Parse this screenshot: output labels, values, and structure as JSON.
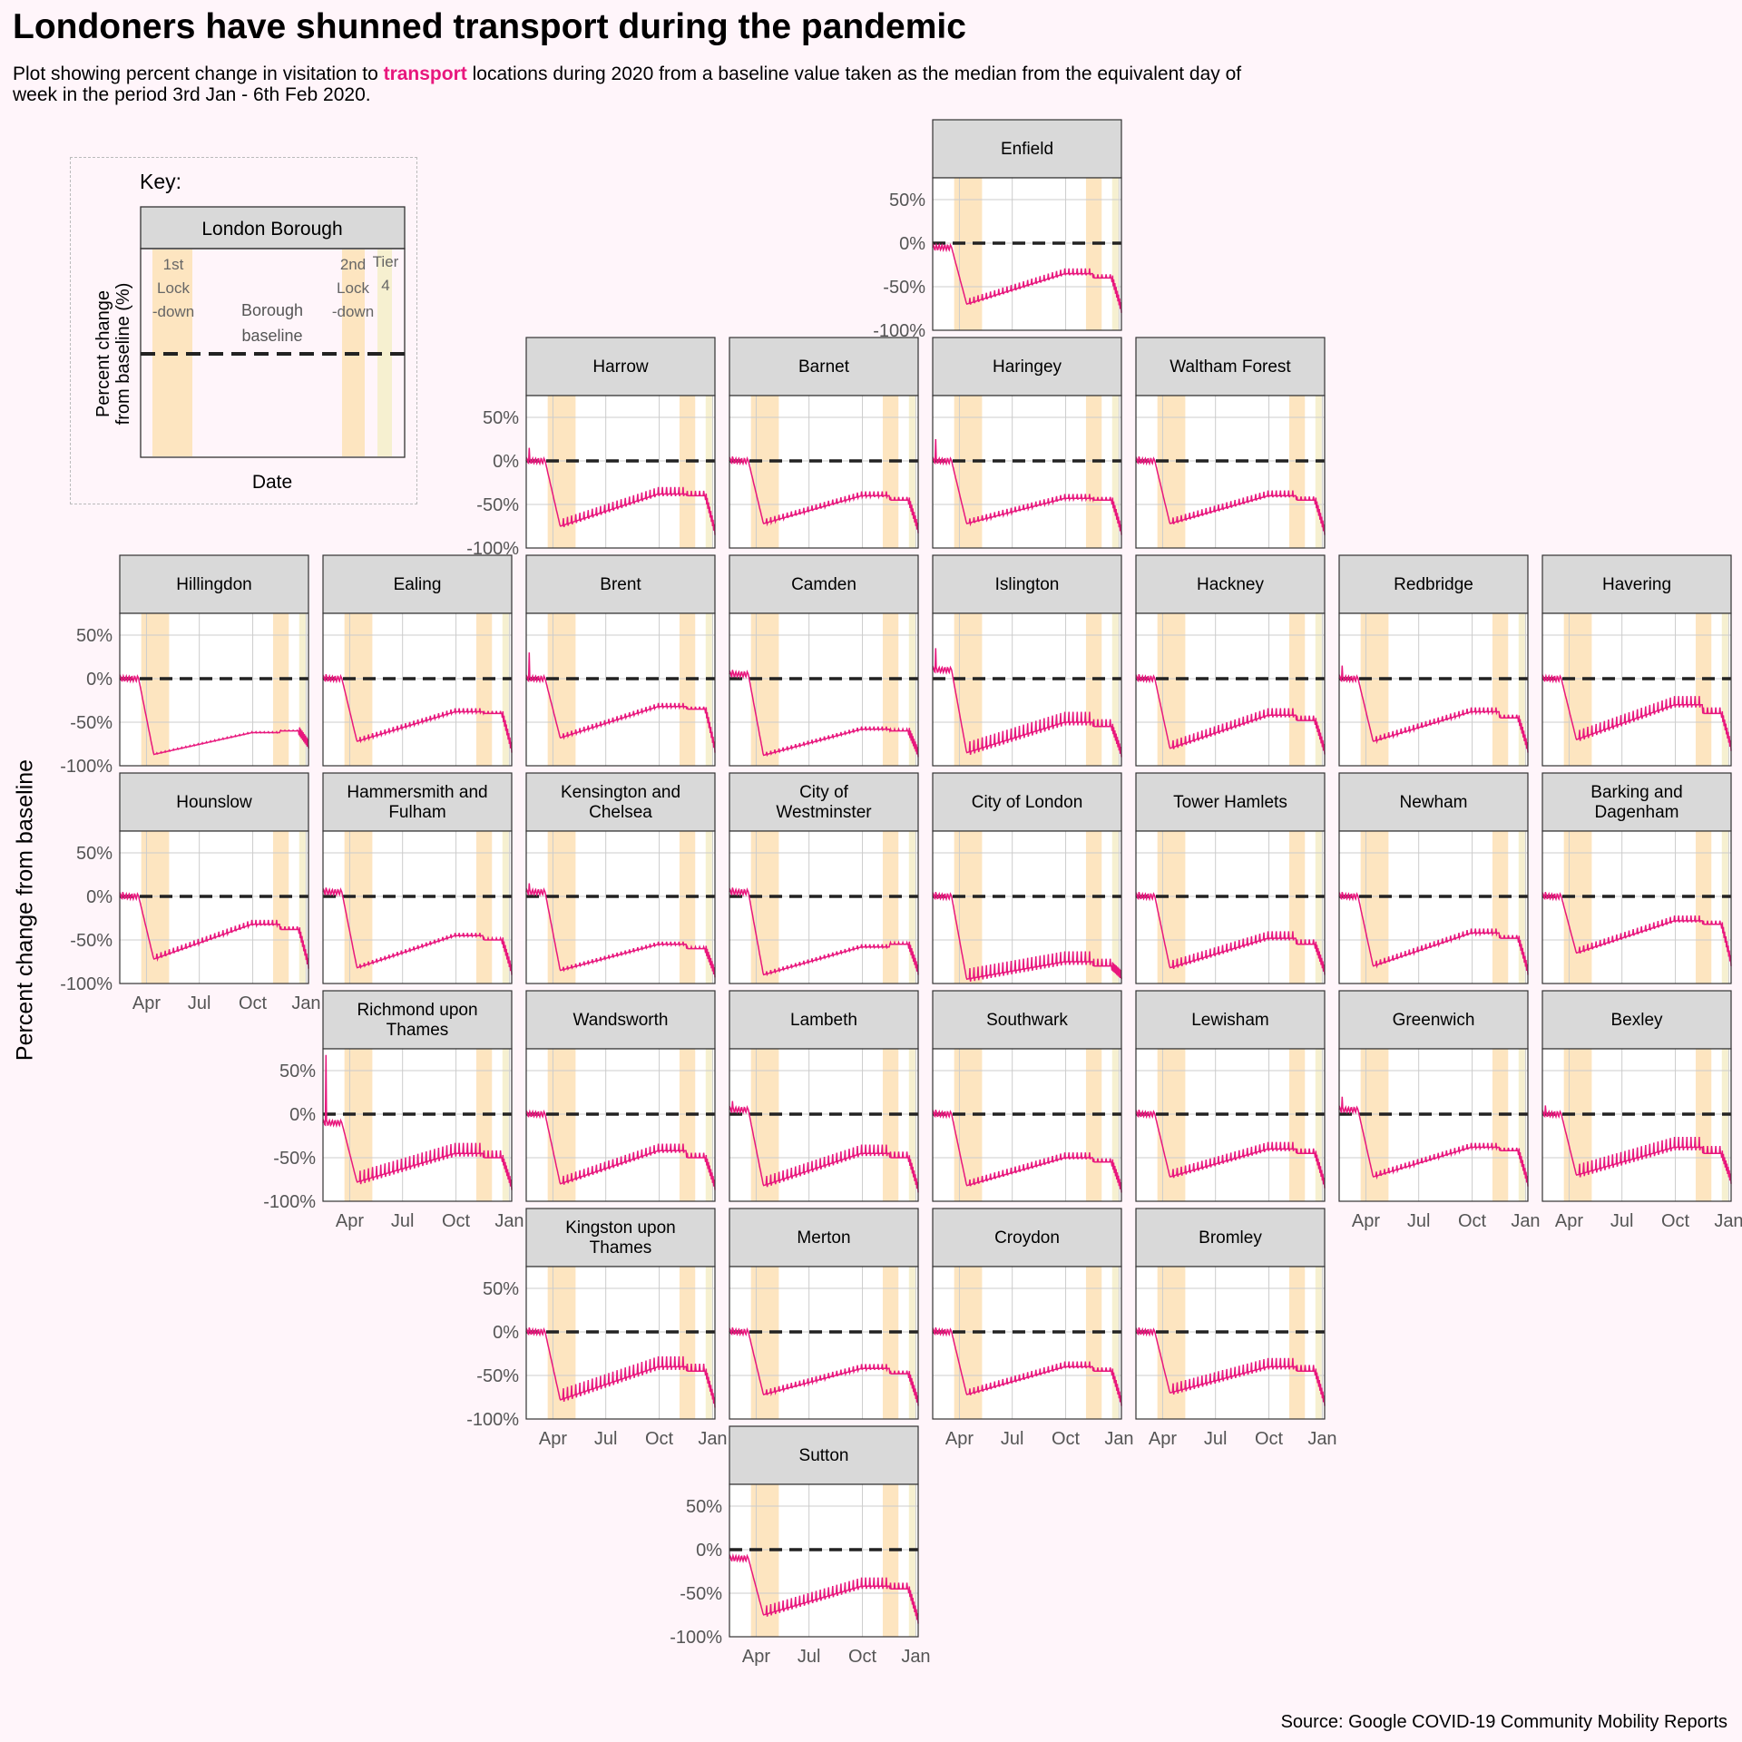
{
  "title": "Londoners have shunned transport during the pandemic",
  "subtitle": {
    "before": "Plot showing percent change in visitation to ",
    "highlight": "transport",
    "after": " locations during 2020 from a baseline value taken as the median from the equivalent day of week in the period 3rd Jan - 6th Feb 2020."
  },
  "y_axis_label": "Percent change from baseline",
  "source": "Source: Google COVID-19 Community Mobility Reports",
  "colors": {
    "series": "#e8177d",
    "lockdown_band": "#fde5c0",
    "tier4_band": "#f6f0d0",
    "strip": "#d9d9d9",
    "grid": "#cccccc",
    "baseline": "#222222",
    "background": "#fff5fa"
  },
  "key": {
    "title": "Key:",
    "strip": "London Borough",
    "band1": [
      "1st",
      "Lock",
      "-down"
    ],
    "band2": [
      "2nd",
      "Lock",
      "-down"
    ],
    "band3": [
      "Tier",
      "4"
    ],
    "baseline": [
      "Borough",
      "baseline"
    ],
    "ylabel": [
      "Percent change",
      "from baseline (%)"
    ],
    "xlabel": "Date"
  },
  "chart_data": {
    "type": "line",
    "layout": "geofacet small multiples",
    "y_ticks": [
      "50%",
      "0%",
      "-50%",
      "-100%"
    ],
    "x_ticks": [
      "Apr",
      "Jul",
      "Oct",
      "Jan"
    ],
    "ylim": [
      -100,
      75
    ],
    "xlim": [
      "2020-02-15",
      "2021-01-05"
    ],
    "baseline": 0,
    "bands": [
      {
        "name": "1st Lockdown",
        "start": "2020-03-23",
        "end": "2020-05-10"
      },
      {
        "name": "2nd Lockdown",
        "start": "2020-11-05",
        "end": "2020-12-02"
      },
      {
        "name": "Tier 4",
        "start": "2020-12-20",
        "end": "2020-12-31"
      }
    ],
    "panels": [
      {
        "name": "Enfield",
        "row": 0,
        "col": 4,
        "xaxis": false,
        "pre": -5,
        "trough": -70,
        "mid": -35,
        "late": -40,
        "end": -75,
        "amp": 6,
        "spike": 0
      },
      {
        "name": "Harrow",
        "row": 1,
        "col": 2,
        "xaxis": false,
        "pre": 0,
        "trough": -75,
        "mid": -38,
        "late": -40,
        "end": -80,
        "amp": 8,
        "spike": 15
      },
      {
        "name": "Barnet",
        "row": 1,
        "col": 3,
        "xaxis": false,
        "pre": 0,
        "trough": -72,
        "mid": -40,
        "late": -45,
        "end": -78,
        "amp": 5,
        "spike": 5
      },
      {
        "name": "Haringey",
        "row": 1,
        "col": 4,
        "xaxis": false,
        "pre": 0,
        "trough": -72,
        "mid": -43,
        "late": -45,
        "end": -80,
        "amp": 5,
        "spike": 25
      },
      {
        "name": "Waltham Forest",
        "row": 1,
        "col": 5,
        "xaxis": false,
        "pre": 0,
        "trough": -72,
        "mid": -40,
        "late": -45,
        "end": -80,
        "amp": 6,
        "spike": 5
      },
      {
        "name": "Hillingdon",
        "row": 2,
        "col": 0,
        "xaxis": false,
        "pre": 0,
        "trough": -87,
        "mid": -62,
        "late": -60,
        "end": -75,
        "amp": 1,
        "spike": 0
      },
      {
        "name": "Ealing",
        "row": 2,
        "col": 1,
        "xaxis": false,
        "pre": 0,
        "trough": -72,
        "mid": -38,
        "late": -40,
        "end": -80,
        "amp": 4,
        "spike": 5
      },
      {
        "name": "Brent",
        "row": 2,
        "col": 2,
        "xaxis": false,
        "pre": 0,
        "trough": -68,
        "mid": -32,
        "late": -35,
        "end": -80,
        "amp": 4,
        "spike": 30
      },
      {
        "name": "Camden",
        "row": 2,
        "col": 3,
        "xaxis": false,
        "pre": 5,
        "trough": -88,
        "mid": -58,
        "late": -60,
        "end": -85,
        "amp": 3,
        "spike": 10
      },
      {
        "name": "Islington",
        "row": 2,
        "col": 4,
        "xaxis": false,
        "pre": 10,
        "trough": -85,
        "mid": -50,
        "late": -55,
        "end": -85,
        "amp": 12,
        "spike": 35
      },
      {
        "name": "Hackney",
        "row": 2,
        "col": 5,
        "xaxis": false,
        "pre": 0,
        "trough": -80,
        "mid": -42,
        "late": -48,
        "end": -82,
        "amp": 8,
        "spike": 5
      },
      {
        "name": "Redbridge",
        "row": 2,
        "col": 6,
        "xaxis": false,
        "pre": 0,
        "trough": -72,
        "mid": -38,
        "late": -45,
        "end": -80,
        "amp": 5,
        "spike": 15
      },
      {
        "name": "Havering",
        "row": 2,
        "col": 7,
        "xaxis": false,
        "pre": 0,
        "trough": -70,
        "mid": -30,
        "late": -40,
        "end": -78,
        "amp": 10,
        "spike": 0
      },
      {
        "name": "Hounslow",
        "row": 3,
        "col": 0,
        "xaxis": true,
        "pre": 0,
        "trough": -72,
        "mid": -32,
        "late": -38,
        "end": -78,
        "amp": 5,
        "spike": 5
      },
      {
        "name": "Hammersmith and Fulham",
        "row": 3,
        "col": 1,
        "xaxis": false,
        "pre": 5,
        "trough": -82,
        "mid": -45,
        "late": -50,
        "end": -85,
        "amp": 3,
        "spike": 10
      },
      {
        "name": "Kensington and Chelsea",
        "row": 3,
        "col": 2,
        "xaxis": false,
        "pre": 5,
        "trough": -85,
        "mid": -55,
        "late": -60,
        "end": -88,
        "amp": 3,
        "spike": 15
      },
      {
        "name": "City of Westminster",
        "row": 3,
        "col": 3,
        "xaxis": false,
        "pre": 5,
        "trough": -90,
        "mid": -58,
        "late": -55,
        "end": -85,
        "amp": 3,
        "spike": 10
      },
      {
        "name": "City of London",
        "row": 3,
        "col": 4,
        "xaxis": false,
        "pre": 0,
        "trough": -95,
        "mid": -75,
        "late": -80,
        "end": -90,
        "amp": 12,
        "spike": 5
      },
      {
        "name": "Tower Hamlets",
        "row": 3,
        "col": 5,
        "xaxis": false,
        "pre": 0,
        "trough": -82,
        "mid": -48,
        "late": -55,
        "end": -85,
        "amp": 8,
        "spike": 5
      },
      {
        "name": "Newham",
        "row": 3,
        "col": 6,
        "xaxis": false,
        "pre": 0,
        "trough": -80,
        "mid": -42,
        "late": -48,
        "end": -85,
        "amp": 5,
        "spike": 5
      },
      {
        "name": "Barking and Dagenham",
        "row": 3,
        "col": 7,
        "xaxis": false,
        "pre": 0,
        "trough": -65,
        "mid": -28,
        "late": -32,
        "end": -75,
        "amp": 6,
        "spike": 5
      },
      {
        "name": "Richmond upon Thames",
        "row": 4,
        "col": 1,
        "xaxis": true,
        "pre": -10,
        "trough": -78,
        "mid": -45,
        "late": -50,
        "end": -82,
        "amp": 12,
        "spike": 68
      },
      {
        "name": "Wandsworth",
        "row": 4,
        "col": 2,
        "xaxis": false,
        "pre": 0,
        "trough": -80,
        "mid": -42,
        "late": -50,
        "end": -82,
        "amp": 8,
        "spike": 0
      },
      {
        "name": "Lambeth",
        "row": 4,
        "col": 3,
        "xaxis": false,
        "pre": 5,
        "trough": -82,
        "mid": -45,
        "late": -50,
        "end": -85,
        "amp": 10,
        "spike": 15
      },
      {
        "name": "Southwark",
        "row": 4,
        "col": 4,
        "xaxis": false,
        "pre": 0,
        "trough": -82,
        "mid": -50,
        "late": -55,
        "end": -85,
        "amp": 6,
        "spike": 5
      },
      {
        "name": "Lewisham",
        "row": 4,
        "col": 5,
        "xaxis": false,
        "pre": 0,
        "trough": -72,
        "mid": -40,
        "late": -45,
        "end": -80,
        "amp": 8,
        "spike": 5
      },
      {
        "name": "Greenwich",
        "row": 4,
        "col": 6,
        "xaxis": true,
        "pre": 5,
        "trough": -72,
        "mid": -38,
        "late": -42,
        "end": -78,
        "amp": 5,
        "spike": 20
      },
      {
        "name": "Bexley",
        "row": 4,
        "col": 7,
        "xaxis": true,
        "pre": 0,
        "trough": -70,
        "mid": -38,
        "late": -45,
        "end": -75,
        "amp": 12,
        "spike": 10
      },
      {
        "name": "Kingston upon Thames",
        "row": 5,
        "col": 2,
        "xaxis": true,
        "pre": 0,
        "trough": -78,
        "mid": -40,
        "late": -45,
        "end": -82,
        "amp": 12,
        "spike": 5
      },
      {
        "name": "Merton",
        "row": 5,
        "col": 3,
        "xaxis": false,
        "pre": 0,
        "trough": -72,
        "mid": -42,
        "late": -48,
        "end": -80,
        "amp": 5,
        "spike": 5
      },
      {
        "name": "Croydon",
        "row": 5,
        "col": 4,
        "xaxis": true,
        "pre": 0,
        "trough": -72,
        "mid": -40,
        "late": -45,
        "end": -80,
        "amp": 6,
        "spike": 5
      },
      {
        "name": "Bromley",
        "row": 5,
        "col": 5,
        "xaxis": true,
        "pre": 0,
        "trough": -70,
        "mid": -40,
        "late": -45,
        "end": -80,
        "amp": 10,
        "spike": 5
      },
      {
        "name": "Sutton",
        "row": 6,
        "col": 3,
        "xaxis": true,
        "pre": -10,
        "trough": -75,
        "mid": -42,
        "late": -45,
        "end": -80,
        "amp": 10,
        "spike": 0
      }
    ]
  }
}
